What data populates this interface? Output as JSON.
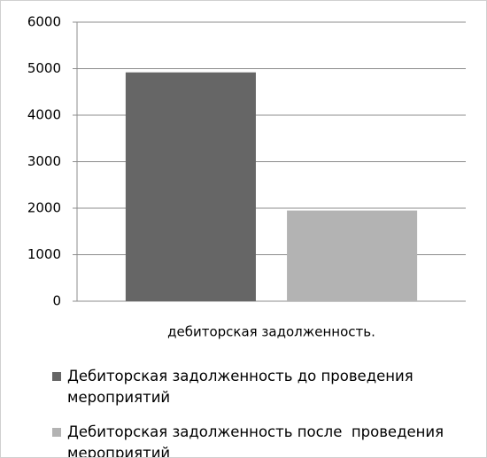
{
  "chart_data": {
    "type": "bar",
    "categories": [
      "дебиторская задолженность."
    ],
    "series": [
      {
        "name": "Дебиторская задолженность до проведения мероприятий",
        "color": "#666666",
        "values": [
          4920
        ]
      },
      {
        "name": "Дебиторская задолженность после  проведения мероприятий",
        "color": "#b3b3b3",
        "values": [
          1950
        ]
      }
    ],
    "ylim": [
      0,
      6000
    ],
    "yticks": [
      0,
      1000,
      2000,
      3000,
      4000,
      5000,
      6000
    ],
    "grid": true,
    "legend": "bottom"
  }
}
